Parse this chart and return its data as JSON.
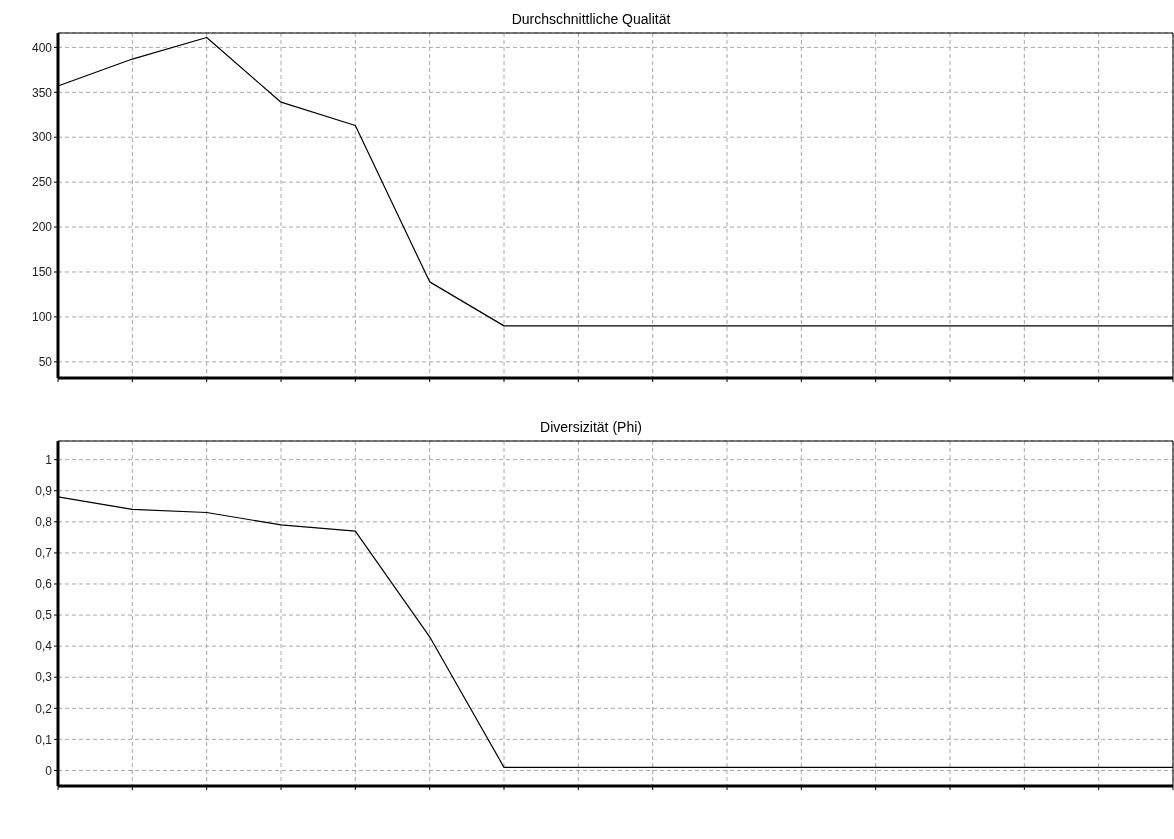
{
  "chart_data": [
    {
      "type": "line",
      "title": "Durchschnittliche Qualität",
      "categories": [
        null,
        null,
        null,
        null,
        null,
        null,
        null,
        null,
        null,
        null,
        null,
        null,
        null,
        null,
        null,
        null
      ],
      "series": [
        {
          "color": "#000000",
          "values": [
            357,
            387,
            411,
            339,
            313,
            139,
            90,
            90,
            90,
            90,
            90,
            90,
            90,
            90,
            90,
            90
          ]
        }
      ],
      "ylim": [
        32,
        416
      ],
      "yticks": [
        50,
        100,
        150,
        200,
        250,
        300,
        350,
        400
      ],
      "grid": true,
      "marker": "none",
      "line_style": "solid",
      "tick_labels": "y",
      "legend": false
    },
    {
      "type": "line",
      "title": "Diversizität (Phi)",
      "categories": [
        null,
        null,
        null,
        null,
        null,
        null,
        null,
        null,
        null,
        null,
        null,
        null,
        null,
        null,
        null,
        null
      ],
      "series": [
        {
          "color": "#000000",
          "values": [
            0.88,
            0.84,
            0.83,
            0.79,
            0.77,
            0.43,
            0.01,
            0.01,
            0.01,
            0.01,
            0.01,
            0.01,
            0.01,
            0.01,
            0.01,
            0.01
          ]
        }
      ],
      "ylim": [
        -0.05,
        1.06
      ],
      "yticks": [
        0,
        {
          "value": 0.1,
          "label": "0,1"
        },
        {
          "value": 0.2,
          "label": "0,2"
        },
        {
          "value": 0.3,
          "label": "0,3"
        },
        {
          "value": 0.4,
          "label": "0,4"
        },
        {
          "value": 0.5,
          "label": "0,5"
        },
        {
          "value": 0.6,
          "label": "0,6"
        },
        {
          "value": 0.7,
          "label": "0,7"
        },
        {
          "value": 0.8,
          "label": "0,8"
        },
        {
          "value": 0.9,
          "label": "0,9"
        },
        1
      ],
      "grid": true,
      "marker": "none",
      "line_style": "solid",
      "tick_labels": "y",
      "legend": false
    }
  ]
}
